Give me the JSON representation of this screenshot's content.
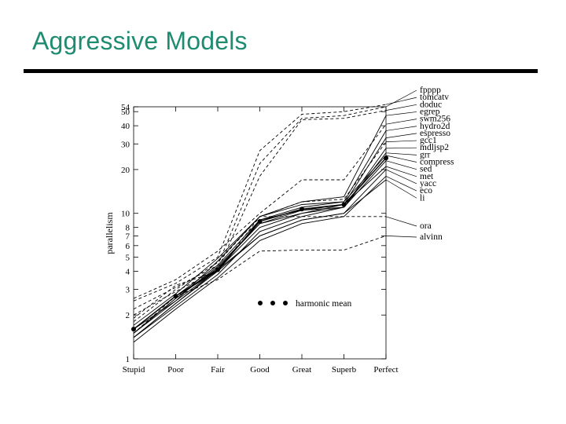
{
  "slide": {
    "title": "Aggressive Models"
  },
  "colors": {
    "title": "#1f8c72",
    "rule": "#000000",
    "ink": "#000000"
  },
  "chart_data": {
    "type": "line",
    "title": "",
    "xlabel": "",
    "ylabel": "parallelism",
    "yscale": "log",
    "ylim": [
      1,
      54
    ],
    "categories": [
      "Stupid",
      "Poor",
      "Fair",
      "Good",
      "Great",
      "Superb",
      "Perfect"
    ],
    "y_ticks": [
      1,
      2,
      3,
      4,
      5,
      6,
      7,
      8,
      10,
      20,
      30,
      40,
      50,
      54
    ],
    "series": [
      {
        "name": "fpppp",
        "style": "dashed",
        "values": [
          2.2,
          3.1,
          4.4,
          22,
          45,
          47,
          54
        ]
      },
      {
        "name": "tomcatv",
        "style": "dashed",
        "values": [
          2.5,
          3.3,
          5.0,
          27,
          48,
          50,
          56
        ]
      },
      {
        "name": "doduc",
        "style": "dashed",
        "values": [
          2.0,
          2.9,
          4.1,
          18,
          44,
          45,
          51
        ]
      },
      {
        "name": "egrep",
        "style": "solid",
        "values": [
          1.6,
          2.5,
          4.7,
          9.5,
          12,
          13,
          47
        ]
      },
      {
        "name": "swm256",
        "style": "dashed",
        "values": [
          2.6,
          3.5,
          5.5,
          10,
          17,
          17,
          41
        ]
      },
      {
        "name": "hydro2d",
        "style": "solid",
        "values": [
          1.4,
          2.4,
          4.0,
          9.0,
          11,
          12,
          37
        ]
      },
      {
        "name": "espresso",
        "style": "solid",
        "values": [
          1.5,
          2.6,
          4.2,
          8.5,
          10.5,
          11.5,
          33
        ]
      },
      {
        "name": "gcc1",
        "style": "dashed",
        "values": [
          1.8,
          3.0,
          4.6,
          9.5,
          12,
          12.5,
          31
        ]
      },
      {
        "name": "mdljsp2",
        "style": "solid",
        "values": [
          1.6,
          2.7,
          4.4,
          9.0,
          10.5,
          11,
          28
        ]
      },
      {
        "name": "grr",
        "style": "solid",
        "values": [
          1.5,
          2.5,
          4.1,
          8.0,
          10,
          11,
          26
        ]
      },
      {
        "name": "compress",
        "style": "solid",
        "values": [
          1.7,
          2.8,
          4.9,
          9.5,
          11.5,
          12,
          25
        ]
      },
      {
        "name": "sed",
        "style": "solid",
        "values": [
          1.4,
          2.3,
          3.8,
          7.5,
          9.5,
          11,
          23
        ]
      },
      {
        "name": "met",
        "style": "solid",
        "values": [
          1.5,
          2.6,
          4.3,
          8.5,
          10,
          11.5,
          21
        ]
      },
      {
        "name": "yacc",
        "style": "solid",
        "values": [
          1.6,
          2.7,
          4.0,
          7.0,
          9.0,
          10,
          20
        ]
      },
      {
        "name": "eco",
        "style": "solid",
        "values": [
          1.3,
          2.2,
          3.6,
          6.5,
          8.5,
          9.5,
          18
        ]
      },
      {
        "name": "li",
        "style": "solid",
        "values": [
          1.4,
          2.4,
          4.1,
          7.0,
          9.0,
          10,
          17
        ]
      },
      {
        "name": "ora",
        "style": "dashed",
        "values": [
          1.9,
          3.2,
          4.0,
          9.5,
          9.5,
          9.5,
          9.5
        ]
      },
      {
        "name": "alvinn",
        "style": "dashed",
        "values": [
          1.5,
          2.7,
          3.5,
          5.5,
          5.6,
          5.6,
          7.0
        ]
      }
    ],
    "harmonic_mean": {
      "label": "harmonic mean",
      "values": [
        1.6,
        2.7,
        4.1,
        8.8,
        10.7,
        11.5,
        24
      ]
    },
    "legend": "right"
  }
}
